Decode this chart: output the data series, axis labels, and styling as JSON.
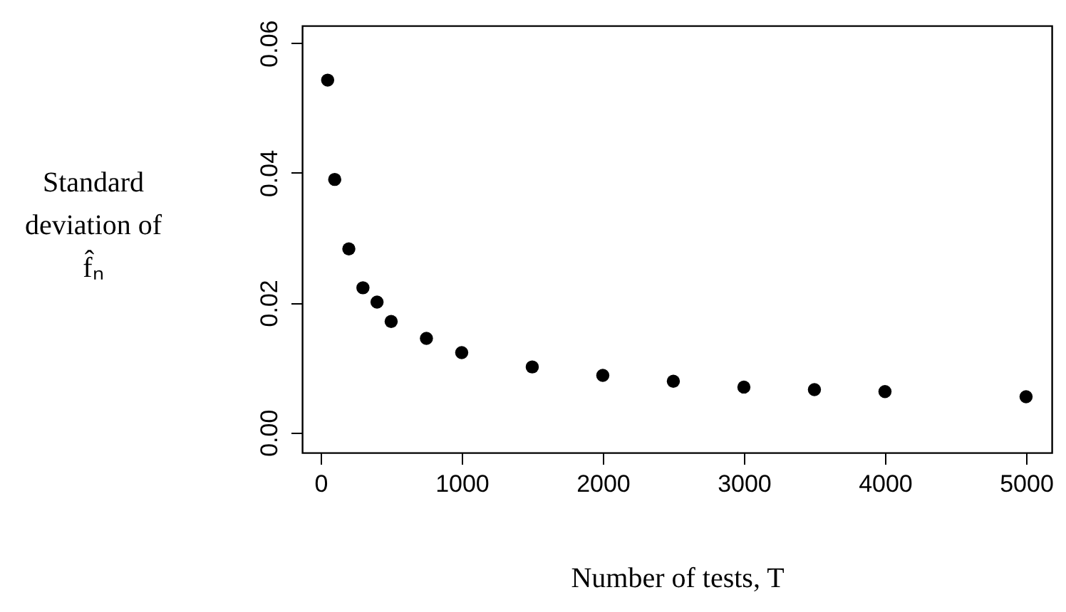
{
  "chart_data": {
    "type": "scatter",
    "xlabel": "Number of tests, T",
    "ylabel": "Standard deviation of f̂ₙ",
    "x": [
      50,
      100,
      200,
      300,
      400,
      500,
      750,
      1000,
      1500,
      2000,
      2500,
      3000,
      3500,
      4000,
      5000
    ],
    "series": [
      {
        "color": "#000000",
        "values": [
          0.0543,
          0.039,
          0.0283,
          0.0223,
          0.0201,
          0.0171,
          0.0145,
          0.0123,
          0.0101,
          0.0088,
          0.0079,
          0.007,
          0.0066,
          0.0063,
          0.0055
        ]
      }
    ],
    "xlim": [
      -131,
      5182
    ],
    "ylim": [
      -0.0031,
      0.0627
    ],
    "xticks": [
      0,
      1000,
      2000,
      3000,
      4000,
      5000
    ],
    "yticks": [
      {
        "value": 0,
        "label": "0.00"
      },
      {
        "value": 0.02,
        "label": "0.02"
      },
      {
        "value": 0.04,
        "label": "0.04"
      },
      {
        "value": 0.06,
        "label": "0.06"
      }
    ],
    "marker": "circle",
    "grid": false
  }
}
